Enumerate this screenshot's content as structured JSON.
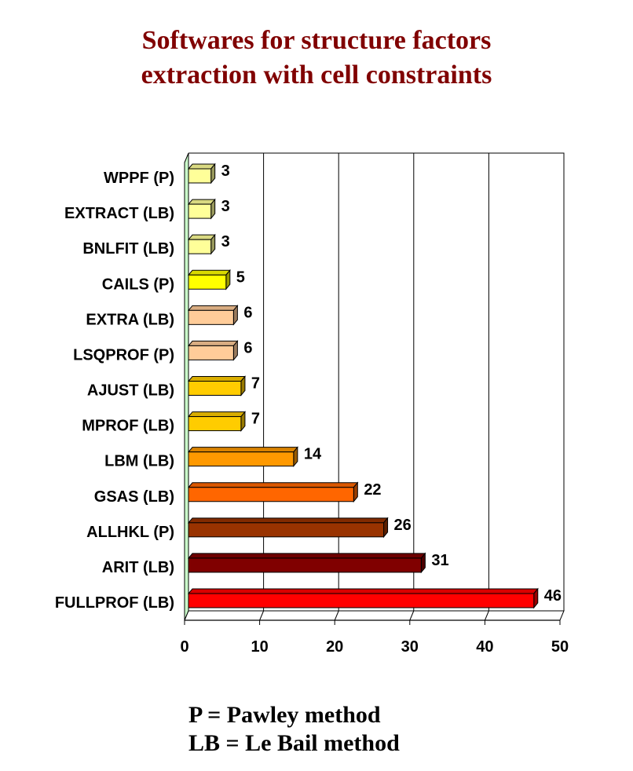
{
  "title_line1": "Softwares for structure factors",
  "title_line2": "extraction with cell constraints",
  "notes": {
    "pawley": "P = Pawley method",
    "lebail": "LB = Le Bail method"
  },
  "chart_data": {
    "type": "bar",
    "orientation": "horizontal",
    "categories": [
      "WPPF (P)",
      "EXTRACT (LB)",
      "BNLFIT (LB)",
      "CAILS (P)",
      "EXTRA (LB)",
      "LSQPROF (P)",
      "AJUST (LB)",
      "MPROF (LB)",
      "LBM (LB)",
      "GSAS (LB)",
      "ALLHKL (P)",
      "ARIT (LB)",
      "FULLPROF (LB)"
    ],
    "values": [
      3,
      3,
      3,
      5,
      6,
      6,
      7,
      7,
      14,
      22,
      26,
      31,
      46
    ],
    "colors": [
      "#ffff99",
      "#ffff99",
      "#ffff99",
      "#ffff00",
      "#ffcc99",
      "#ffcc99",
      "#ffcc00",
      "#ffcc00",
      "#ff9900",
      "#ff6600",
      "#993300",
      "#800000",
      "#ff0000"
    ],
    "data_labels": [
      "3",
      "3",
      "3",
      "5",
      "6",
      "6",
      "7",
      "7",
      "14",
      "22",
      "26",
      "31",
      "46"
    ],
    "xlim": [
      0,
      50
    ],
    "xticks": [
      "0",
      "10",
      "20",
      "30",
      "40",
      "50"
    ],
    "grid": true,
    "wall_color": "#ccffcc",
    "legend": "none"
  }
}
